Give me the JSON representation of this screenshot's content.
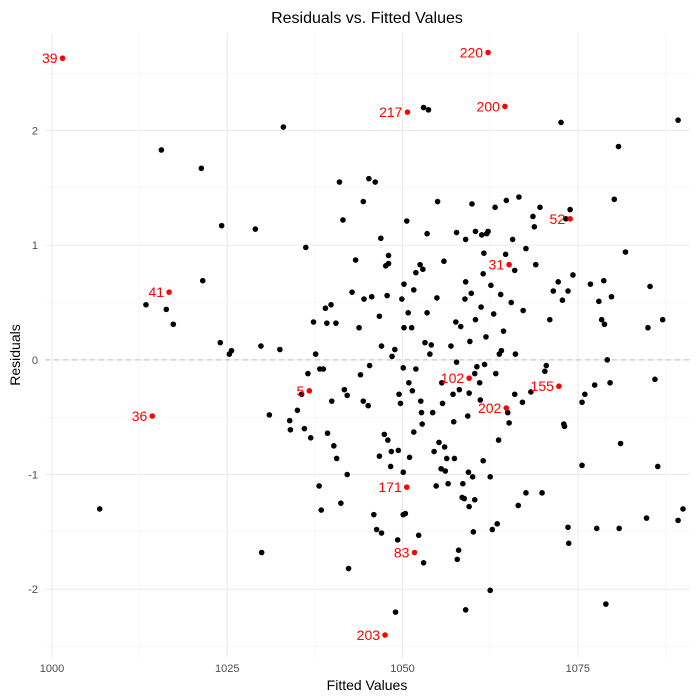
{
  "chart_data": {
    "type": "scatter",
    "title": "Residuals vs. Fitted Values",
    "xlabel": "Fitted Values",
    "ylabel": "Residuals",
    "xlim": [
      999,
      1091
    ],
    "ylim": [
      -2.6,
      2.85
    ],
    "x_ticks": [
      1000,
      1025,
      1050,
      1075
    ],
    "x_tick_labels": [
      "1000",
      "1025",
      "1050",
      "1075"
    ],
    "y_ticks": [
      -2,
      -1,
      0,
      1,
      2
    ],
    "y_tick_labels": [
      "-2",
      "-1",
      "0",
      "1",
      "2"
    ],
    "grid": true,
    "reference_line": 0,
    "colors": {
      "points": "#000000",
      "outliers": "#ff0000",
      "zero_line": "#bfbfbf",
      "grid": "#ebebeb"
    },
    "points": [
      [
        1006.8,
        -1.3
      ],
      [
        1013.4,
        0.48
      ],
      [
        1016.3,
        0.44
      ],
      [
        1017.3,
        0.31
      ],
      [
        1015.6,
        1.83
      ],
      [
        1021.3,
        1.67
      ],
      [
        1021.5,
        0.69
      ],
      [
        1024.2,
        1.17
      ],
      [
        1024.0,
        0.15
      ],
      [
        1025.3,
        0.05
      ],
      [
        1025.6,
        0.08
      ],
      [
        1029.0,
        1.14
      ],
      [
        1029.8,
        0.12
      ],
      [
        1029.9,
        -1.68
      ],
      [
        1031.0,
        -0.48
      ],
      [
        1032.5,
        0.09
      ],
      [
        1033.0,
        2.03
      ],
      [
        1033.9,
        -0.53
      ],
      [
        1034.0,
        -0.61
      ],
      [
        1035.0,
        -0.44
      ],
      [
        1035.6,
        -0.3
      ],
      [
        1036.2,
        0.98
      ],
      [
        1036.0,
        -0.6
      ],
      [
        1036.5,
        -0.12
      ],
      [
        1036.9,
        -0.68
      ],
      [
        1037.6,
        0.05
      ],
      [
        1037.3,
        0.33
      ],
      [
        1038.1,
        -1.1
      ],
      [
        1038.2,
        -0.08
      ],
      [
        1038.4,
        -1.31
      ],
      [
        1038.7,
        -0.08
      ],
      [
        1039.0,
        0.45
      ],
      [
        1039.2,
        0.32
      ],
      [
        1039.8,
        0.48
      ],
      [
        1039.3,
        -0.64
      ],
      [
        1039.9,
        -0.36
      ],
      [
        1040.2,
        -0.75
      ],
      [
        1040.6,
        -0.86
      ],
      [
        1040.5,
        0.32
      ],
      [
        1041.0,
        1.55
      ],
      [
        1041.2,
        -1.25
      ],
      [
        1041.5,
        1.22
      ],
      [
        1041.7,
        -0.26
      ],
      [
        1042.1,
        -1.0
      ],
      [
        1042.1,
        -0.31
      ],
      [
        1042.3,
        -1.82
      ],
      [
        1042.8,
        0.59
      ],
      [
        1043.3,
        0.87
      ],
      [
        1043.8,
        0.28
      ],
      [
        1044.4,
        1.38
      ],
      [
        1044.0,
        -0.13
      ],
      [
        1044.4,
        -0.36
      ],
      [
        1044.5,
        0.53
      ],
      [
        1045.1,
        -0.4
      ],
      [
        1045.3,
        -0.05
      ],
      [
        1045.6,
        0.55
      ],
      [
        1045.2,
        1.58
      ],
      [
        1045.9,
        -1.35
      ],
      [
        1046.1,
        1.55
      ],
      [
        1046.3,
        -1.48
      ],
      [
        1046.7,
        -0.84
      ],
      [
        1046.7,
        0.38
      ],
      [
        1046.9,
        1.06
      ],
      [
        1047.0,
        0.12
      ],
      [
        1047.0,
        -1.51
      ],
      [
        1047.4,
        -0.65
      ],
      [
        1047.6,
        0.82
      ],
      [
        1047.8,
        0.56
      ],
      [
        1047.9,
        -0.7
      ],
      [
        1048.0,
        0.91
      ],
      [
        1048.0,
        0.84
      ],
      [
        1048.3,
        -0.93
      ],
      [
        1048.4,
        -0.8
      ],
      [
        1048.5,
        0.03
      ],
      [
        1048.9,
        0.09
      ],
      [
        1049.0,
        -2.2
      ],
      [
        1049.3,
        -1.57
      ],
      [
        1049.4,
        -0.79
      ],
      [
        1049.7,
        -0.38
      ],
      [
        1049.9,
        0.53
      ],
      [
        1049.5,
        -0.3
      ],
      [
        1050.1,
        -0.07
      ],
      [
        1050.2,
        0.28
      ],
      [
        1050.1,
        -0.98
      ],
      [
        1050.1,
        -1.35
      ],
      [
        1050.2,
        0.66
      ],
      [
        1050.4,
        -1.34
      ],
      [
        1050.6,
        1.21
      ],
      [
        1050.8,
        0.41
      ],
      [
        1050.9,
        -0.2
      ],
      [
        1051.0,
        -0.85
      ],
      [
        1051.3,
        0.28
      ],
      [
        1051.4,
        -0.27
      ],
      [
        1051.6,
        -0.63
      ],
      [
        1051.6,
        0.61
      ],
      [
        1051.9,
        -0.08
      ],
      [
        1051.9,
        0.76
      ],
      [
        1052.3,
        -1.53
      ],
      [
        1052.5,
        0.83
      ],
      [
        1052.7,
        -0.46
      ],
      [
        1052.6,
        -0.36
      ],
      [
        1052.8,
        -0.56
      ],
      [
        1052.9,
        0.79
      ],
      [
        1053.0,
        -1.77
      ],
      [
        1053.0,
        2.2
      ],
      [
        1053.2,
        0.15
      ],
      [
        1053.5,
        0.41
      ],
      [
        1053.5,
        1.1
      ],
      [
        1053.7,
        2.18
      ],
      [
        1053.9,
        0.05
      ],
      [
        1054.1,
        0.13
      ],
      [
        1054.3,
        -0.46
      ],
      [
        1054.5,
        -0.8
      ],
      [
        1054.8,
        -1.1
      ],
      [
        1054.9,
        0.54
      ],
      [
        1055.0,
        1.38
      ],
      [
        1055.2,
        -0.72
      ],
      [
        1055.5,
        -0.95
      ],
      [
        1055.6,
        -0.2
      ],
      [
        1055.7,
        -0.38
      ],
      [
        1055.9,
        0.86
      ],
      [
        1056.0,
        -0.76
      ],
      [
        1056.1,
        -0.97
      ],
      [
        1056.3,
        -0.86
      ],
      [
        1056.5,
        -1.08
      ],
      [
        1056.9,
        0.12
      ],
      [
        1057.2,
        -0.3
      ],
      [
        1057.3,
        -0.54
      ],
      [
        1057.4,
        -0.86
      ],
      [
        1057.6,
        0.33
      ],
      [
        1057.7,
        -0.02
      ],
      [
        1057.7,
        1.11
      ],
      [
        1057.8,
        -1.74
      ],
      [
        1058.0,
        -1.66
      ],
      [
        1058.1,
        -0.26
      ],
      [
        1058.3,
        0.29
      ],
      [
        1058.5,
        -1.2
      ],
      [
        1058.6,
        -1.08
      ],
      [
        1058.8,
        -1.21
      ],
      [
        1058.9,
        0.53
      ],
      [
        1059.0,
        -2.18
      ],
      [
        1059.0,
        0.68
      ],
      [
        1059.0,
        1.05
      ],
      [
        1059.3,
        -0.49
      ],
      [
        1059.4,
        -0.98
      ],
      [
        1059.5,
        -1.28
      ],
      [
        1059.5,
        -0.29
      ],
      [
        1059.6,
        0.16
      ],
      [
        1059.8,
        0.58
      ],
      [
        1059.9,
        1.36
      ],
      [
        1060.0,
        -1.02
      ],
      [
        1060.1,
        -1.5
      ],
      [
        1060.3,
        -1.22
      ],
      [
        1060.3,
        -0.12
      ],
      [
        1060.4,
        0.35
      ],
      [
        1060.4,
        1.12
      ],
      [
        1060.6,
        -0.06
      ],
      [
        1061.0,
        -0.2
      ],
      [
        1061.1,
        -0.35
      ],
      [
        1061.2,
        0.46
      ],
      [
        1061.3,
        1.09
      ],
      [
        1061.5,
        0.75
      ],
      [
        1061.5,
        -0.88
      ],
      [
        1061.6,
        0.93
      ],
      [
        1061.7,
        -0.04
      ],
      [
        1061.9,
        0.2
      ],
      [
        1062.0,
        1.1
      ],
      [
        1062.2,
        1.12
      ],
      [
        1062.5,
        -2.01
      ],
      [
        1062.5,
        -1.02
      ],
      [
        1062.6,
        0.65
      ],
      [
        1062.8,
        -1.48
      ],
      [
        1063.0,
        0.4
      ],
      [
        1063.2,
        1.33
      ],
      [
        1063.3,
        -0.12
      ],
      [
        1063.5,
        -1.43
      ],
      [
        1063.7,
        -0.7
      ],
      [
        1063.8,
        0.05
      ],
      [
        1064.0,
        0.57
      ],
      [
        1064.1,
        0.08
      ],
      [
        1064.4,
        0.25
      ],
      [
        1064.7,
        0.92
      ],
      [
        1064.8,
        1.39
      ],
      [
        1065.0,
        -0.46
      ],
      [
        1065.2,
        -0.55
      ],
      [
        1065.5,
        0.5
      ],
      [
        1065.7,
        1.05
      ],
      [
        1066.0,
        0.78
      ],
      [
        1066.0,
        -0.3
      ],
      [
        1066.1,
        0.05
      ],
      [
        1066.5,
        -1.27
      ],
      [
        1066.6,
        1.42
      ],
      [
        1067.1,
        -0.37
      ],
      [
        1067.2,
        0.43
      ],
      [
        1067.6,
        0.97
      ],
      [
        1067.6,
        -1.16
      ],
      [
        1068.3,
        -0.28
      ],
      [
        1068.6,
        1.25
      ],
      [
        1068.8,
        1.16
      ],
      [
        1069.0,
        0.83
      ],
      [
        1069.6,
        1.33
      ],
      [
        1069.9,
        -1.16
      ],
      [
        1070.3,
        -0.1
      ],
      [
        1070.5,
        -0.05
      ],
      [
        1071.0,
        0.35
      ],
      [
        1071.5,
        0.6
      ],
      [
        1072.2,
        0.68
      ],
      [
        1072.6,
        2.07
      ],
      [
        1072.8,
        0.52
      ],
      [
        1073.0,
        -0.56
      ],
      [
        1073.1,
        -0.58
      ],
      [
        1073.3,
        1.23
      ],
      [
        1073.6,
        0.6
      ],
      [
        1073.6,
        -1.46
      ],
      [
        1073.7,
        -1.6
      ],
      [
        1073.9,
        1.31
      ],
      [
        1074.3,
        0.74
      ],
      [
        1075.6,
        -0.37
      ],
      [
        1075.6,
        -0.92
      ],
      [
        1076.0,
        -0.3
      ],
      [
        1076.8,
        0.66
      ],
      [
        1077.4,
        -0.22
      ],
      [
        1077.7,
        -1.47
      ],
      [
        1078.0,
        0.51
      ],
      [
        1078.4,
        0.35
      ],
      [
        1078.7,
        0.69
      ],
      [
        1078.8,
        0.31
      ],
      [
        1079.0,
        -2.13
      ],
      [
        1079.2,
        0.0
      ],
      [
        1079.8,
        0.55
      ],
      [
        1079.6,
        -0.2
      ],
      [
        1080.2,
        1.4
      ],
      [
        1080.8,
        1.86
      ],
      [
        1080.9,
        -1.47
      ],
      [
        1081.1,
        -0.73
      ],
      [
        1081.8,
        0.94
      ],
      [
        1084.8,
        -1.38
      ],
      [
        1085.0,
        0.28
      ],
      [
        1085.3,
        0.64
      ],
      [
        1086.0,
        -0.17
      ],
      [
        1086.4,
        -0.93
      ],
      [
        1087.1,
        0.35
      ],
      [
        1089.3,
        2.09
      ],
      [
        1089.3,
        -1.4
      ],
      [
        1090.0,
        -1.3
      ]
    ],
    "outliers": [
      {
        "label": "39",
        "x": 1001.5,
        "y": 2.63
      },
      {
        "label": "220",
        "x": 1062.2,
        "y": 2.68
      },
      {
        "label": "217",
        "x": 1050.7,
        "y": 2.16
      },
      {
        "label": "200",
        "x": 1064.6,
        "y": 2.21
      },
      {
        "label": "52",
        "x": 1073.9,
        "y": 1.23
      },
      {
        "label": "31",
        "x": 1065.2,
        "y": 0.83
      },
      {
        "label": "41",
        "x": 1016.7,
        "y": 0.59
      },
      {
        "label": "5",
        "x": 1036.7,
        "y": -0.27
      },
      {
        "label": "102",
        "x": 1059.5,
        "y": -0.16
      },
      {
        "label": "155",
        "x": 1072.3,
        "y": -0.23
      },
      {
        "label": "202",
        "x": 1064.8,
        "y": -0.42
      },
      {
        "label": "36",
        "x": 1014.3,
        "y": -0.49
      },
      {
        "label": "171",
        "x": 1050.6,
        "y": -1.11
      },
      {
        "label": "83",
        "x": 1051.7,
        "y": -1.68
      },
      {
        "label": "203",
        "x": 1047.5,
        "y": -2.4
      }
    ]
  }
}
